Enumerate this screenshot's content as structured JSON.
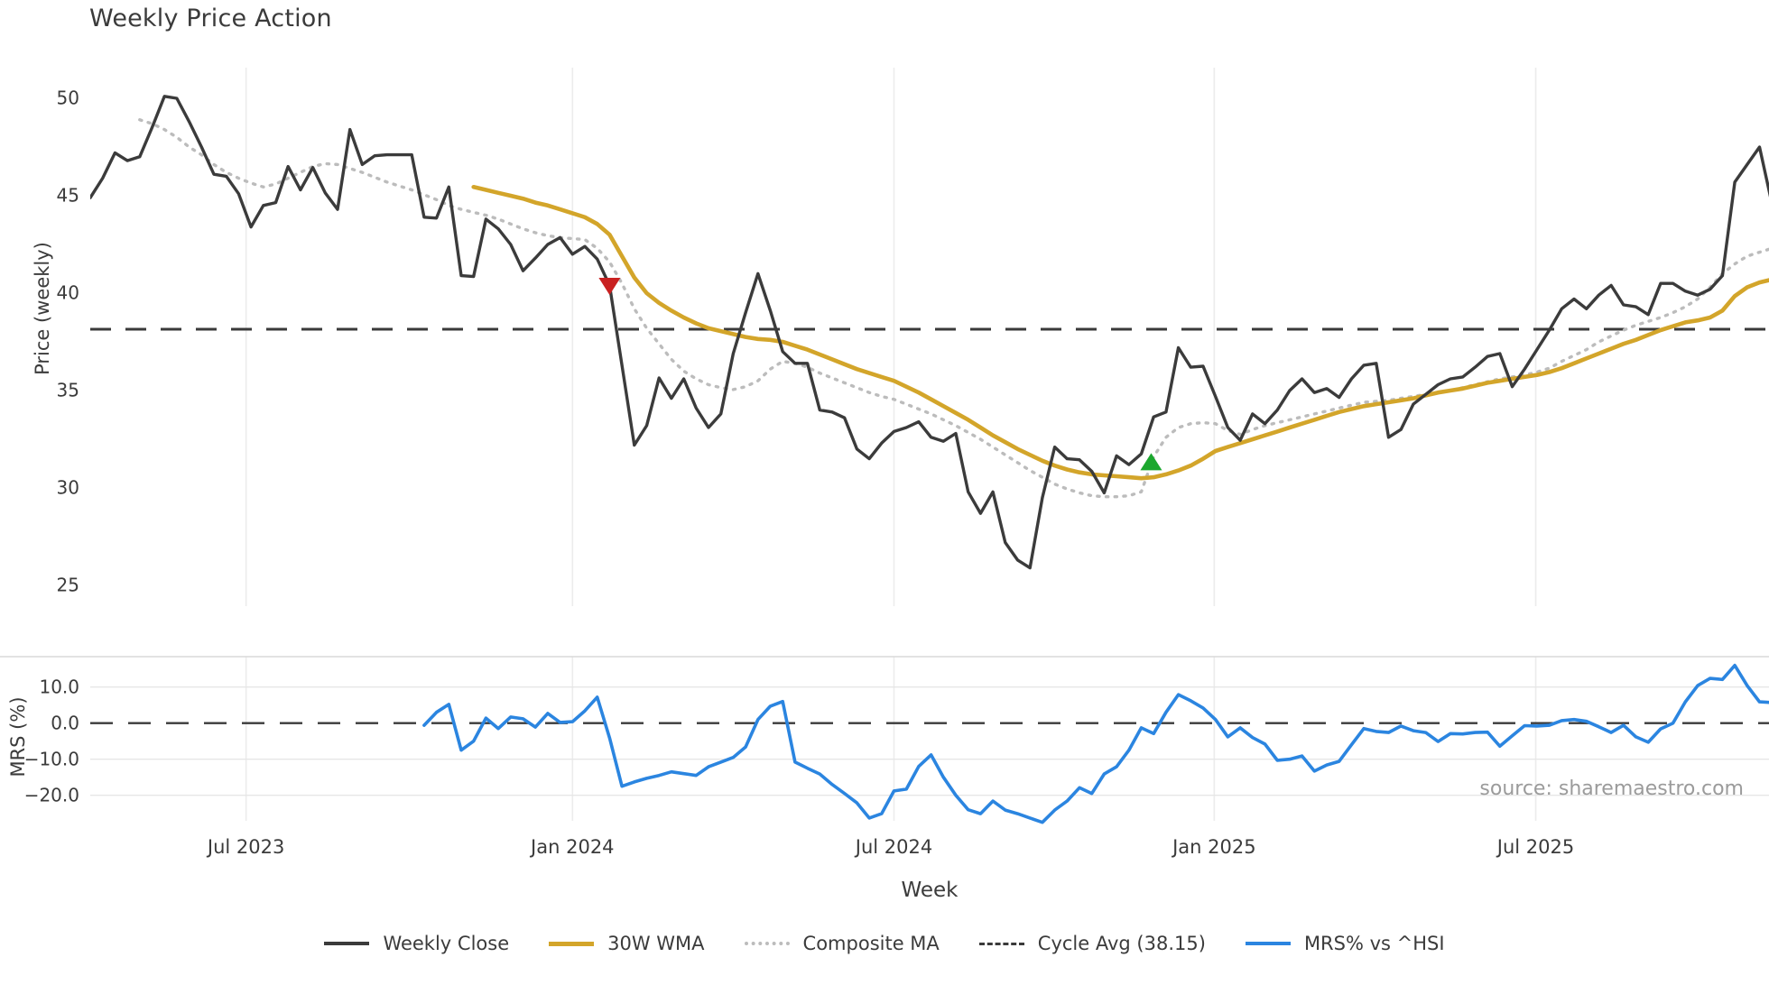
{
  "title": "Weekly Price Action",
  "source": "source: sharemaestro.com",
  "colors": {
    "close": "#3b3b3b",
    "wma": "#d3a52a",
    "composite": "#bcbcbc",
    "cycle_avg": "#3a3a3a",
    "mrs": "#2b85e0",
    "sell_marker": "#c92121",
    "buy_marker": "#1ba72e",
    "gridline": "#ececec",
    "hgrid": "#e6e6e6",
    "panel_border": "#d9d9d9",
    "source_text": "#9b9b9b"
  },
  "legend": [
    {
      "label": "Weekly Close",
      "style": "solid",
      "color": "#3b3b3b",
      "thickness": 4.5
    },
    {
      "label": "30W WMA",
      "style": "solid",
      "color": "#d3a52a",
      "thickness": 5.5
    },
    {
      "label": "Composite MA",
      "style": "dotted",
      "color": "#bcbcbc",
      "thickness": 4
    },
    {
      "label": "Cycle Avg (38.15)",
      "style": "dashed",
      "color": "#3a3a3a",
      "thickness": 3.5
    },
    {
      "label": "MRS% vs ^HSI",
      "style": "solid",
      "color": "#2b85e0",
      "thickness": 4.5
    }
  ],
  "week_axis": {
    "label": "Week",
    "ticks": [
      {
        "label": "Jul 2023",
        "week": 12.6
      },
      {
        "label": "Jan 2024",
        "week": 39.0
      },
      {
        "label": "Jul 2024",
        "week": 65.0
      },
      {
        "label": "Jan 2025",
        "week": 90.9
      },
      {
        "label": "Jul 2025",
        "week": 116.9
      }
    ]
  },
  "price_axis": {
    "label": "Price (weekly)",
    "ticks": [
      {
        "label": "50",
        "value": 50
      },
      {
        "label": "45",
        "value": 45
      },
      {
        "label": "40",
        "value": 40
      },
      {
        "label": "35",
        "value": 35
      },
      {
        "label": "30",
        "value": 30
      },
      {
        "label": "25",
        "value": 25
      }
    ]
  },
  "mrs_axis": {
    "label": "MRS (%)",
    "ticks": [
      {
        "label": "10.0",
        "value": 10
      },
      {
        "label": "0.0",
        "value": 0
      },
      {
        "label": "−10.0",
        "value": -10
      },
      {
        "label": "−20.0",
        "value": -20
      }
    ]
  },
  "chart_data": [
    {
      "type": "line",
      "panel": "price",
      "title": "Weekly Price Action",
      "xlabel": "Week",
      "ylabel": "Price (weekly)",
      "ylim": [
        23.9,
        51.6
      ],
      "x_unit": "weeks from 2023-04-10, spacing 1 week",
      "grid": "vertical-only",
      "cycle_avg": 38.15,
      "series": [
        {
          "name": "Weekly Close",
          "start_week": 0,
          "values": [
            44.9,
            45.9,
            47.2,
            46.8,
            47.0,
            48.5,
            50.1,
            50.0,
            48.8,
            47.5,
            46.1,
            46.0,
            45.1,
            43.4,
            44.5,
            44.65,
            46.5,
            45.3,
            46.45,
            45.15,
            44.3,
            48.4,
            46.6,
            47.05,
            47.1,
            47.1,
            47.1,
            43.9,
            43.85,
            45.45,
            40.9,
            40.85,
            43.8,
            43.3,
            42.5,
            41.15,
            41.8,
            42.5,
            42.85,
            42.0,
            42.4,
            41.75,
            40.4,
            36.3,
            32.2,
            33.2,
            35.65,
            34.6,
            35.6,
            34.1,
            33.1,
            33.8,
            36.9,
            39.0,
            41.0,
            39.1,
            37.0,
            36.4,
            36.4,
            34.0,
            33.9,
            33.6,
            32.0,
            31.5,
            32.3,
            32.9,
            33.1,
            33.4,
            32.6,
            32.4,
            32.8,
            29.8,
            28.7,
            29.8,
            27.2,
            26.3,
            25.9,
            29.5,
            32.1,
            31.5,
            31.45,
            30.85,
            29.75,
            31.65,
            31.2,
            31.75,
            33.65,
            33.9,
            37.2,
            36.2,
            36.25,
            34.7,
            33.1,
            32.45,
            33.8,
            33.3,
            34.0,
            35.0,
            35.6,
            34.9,
            35.1,
            34.65,
            35.6,
            36.3,
            36.4,
            32.6,
            33.0,
            34.3,
            34.8,
            35.3,
            35.6,
            35.7,
            36.2,
            36.75,
            36.9,
            35.2,
            36.1,
            37.1,
            38.1,
            39.2,
            39.7,
            39.2,
            39.9,
            40.4,
            39.4,
            39.3,
            38.9,
            40.5,
            40.5,
            40.1,
            39.9,
            40.2,
            40.9,
            45.7,
            46.6,
            47.5,
            44.6
          ]
        },
        {
          "name": "30W WMA",
          "start_week": 31,
          "values": [
            45.45,
            45.3,
            45.15,
            45.0,
            44.85,
            44.65,
            44.5,
            44.3,
            44.1,
            43.9,
            43.55,
            43.0,
            41.9,
            40.8,
            40.0,
            39.5,
            39.1,
            38.75,
            38.45,
            38.2,
            38.05,
            37.9,
            37.75,
            37.65,
            37.6,
            37.5,
            37.3,
            37.1,
            36.85,
            36.6,
            36.35,
            36.1,
            35.9,
            35.7,
            35.5,
            35.2,
            34.9,
            34.55,
            34.2,
            33.85,
            33.5,
            33.1,
            32.7,
            32.35,
            32.0,
            31.7,
            31.4,
            31.15,
            30.95,
            30.8,
            30.7,
            30.65,
            30.6,
            30.55,
            30.5,
            30.55,
            30.7,
            30.9,
            31.15,
            31.5,
            31.9,
            32.1,
            32.3,
            32.5,
            32.7,
            32.9,
            33.1,
            33.3,
            33.5,
            33.7,
            33.9,
            34.05,
            34.2,
            34.3,
            34.4,
            34.5,
            34.6,
            34.75,
            34.9,
            35.0,
            35.1,
            35.25,
            35.4,
            35.5,
            35.6,
            35.7,
            35.8,
            35.95,
            36.15,
            36.4,
            36.65,
            36.9,
            37.15,
            37.4,
            37.6,
            37.85,
            38.1,
            38.3,
            38.5,
            38.6,
            38.75,
            39.1,
            39.85,
            40.3,
            40.55,
            40.7
          ]
        },
        {
          "name": "Composite MA",
          "start_week": 4,
          "values": [
            48.9,
            48.7,
            48.4,
            48.0,
            47.5,
            47.1,
            46.6,
            46.2,
            45.9,
            45.65,
            45.45,
            45.6,
            45.9,
            46.2,
            46.5,
            46.65,
            46.6,
            46.4,
            46.2,
            45.95,
            45.7,
            45.5,
            45.3,
            45.05,
            44.8,
            44.5,
            44.3,
            44.15,
            44.0,
            43.8,
            43.55,
            43.3,
            43.1,
            42.95,
            42.85,
            42.8,
            42.75,
            42.3,
            41.6,
            40.5,
            39.2,
            38.2,
            37.4,
            36.6,
            36.0,
            35.6,
            35.3,
            35.15,
            35.05,
            35.2,
            35.5,
            36.1,
            36.5,
            36.4,
            36.2,
            35.9,
            35.65,
            35.4,
            35.15,
            34.9,
            34.7,
            34.55,
            34.3,
            34.05,
            33.8,
            33.5,
            33.2,
            32.85,
            32.5,
            32.1,
            31.7,
            31.3,
            30.9,
            30.55,
            30.2,
            29.95,
            29.75,
            29.6,
            29.55,
            29.55,
            29.6,
            29.8,
            31.6,
            32.6,
            33.1,
            33.3,
            33.35,
            33.3,
            32.95,
            32.75,
            33.0,
            33.2,
            33.35,
            33.5,
            33.65,
            33.8,
            33.95,
            34.1,
            34.25,
            34.4,
            34.45,
            34.5,
            34.6,
            34.7,
            34.8,
            34.9,
            35.0,
            35.15,
            35.3,
            35.45,
            35.6,
            35.7,
            35.8,
            35.95,
            36.15,
            36.5,
            36.8,
            37.1,
            37.5,
            37.8,
            38.1,
            38.35,
            38.55,
            38.75,
            39.0,
            39.3,
            39.7,
            40.3,
            41.0,
            41.5,
            41.9,
            42.1,
            42.3
          ]
        }
      ],
      "markers": [
        {
          "name": "sell-signal",
          "shape": "triangle-down",
          "week": 42,
          "value": 40.35,
          "color": "#c92121"
        },
        {
          "name": "buy-signal",
          "shape": "triangle-up",
          "week": 85.8,
          "value": 31.35,
          "color": "#1ba72e"
        }
      ]
    },
    {
      "type": "line",
      "panel": "mrs",
      "ylabel": "MRS (%)",
      "ylim": [
        -28.5,
        18.7
      ],
      "zero_line": 0,
      "grid": "horizontal-and-vertical",
      "series": [
        {
          "name": "MRS% vs ^HSI",
          "start_week": 27,
          "values": [
            -0.6,
            3.0,
            5.2,
            -7.5,
            -5.0,
            1.4,
            -1.5,
            1.7,
            1.2,
            -1.1,
            2.7,
            0.2,
            0.4,
            3.4,
            7.2,
            -4.1,
            -17.5,
            -16.3,
            -15.3,
            -14.5,
            -13.5,
            -14.0,
            -14.5,
            -12.1,
            -10.8,
            -9.5,
            -6.6,
            1.0,
            4.7,
            6.0,
            -10.8,
            -12.5,
            -14.1,
            -17.0,
            -19.5,
            -22.1,
            -26.3,
            -25.1,
            -18.8,
            -18.3,
            -12.0,
            -8.8,
            -15.0,
            -20.0,
            -24.0,
            -25.1,
            -21.6,
            -24.1,
            -25.1,
            -26.3,
            -27.5,
            -24.1,
            -21.6,
            -17.9,
            -19.5,
            -14.1,
            -12.1,
            -7.5,
            -1.3,
            -2.9,
            3.0,
            7.9,
            6.2,
            4.2,
            1.0,
            -3.8,
            -1.3,
            -4.0,
            -5.8,
            -10.3,
            -10.0,
            -9.1,
            -13.3,
            -11.6,
            -10.6,
            -6.0,
            -1.5,
            -2.3,
            -2.6,
            -0.8,
            -2.1,
            -2.6,
            -5.1,
            -2.9,
            -3.0,
            -2.6,
            -2.5,
            -6.4,
            -3.5,
            -0.7,
            -0.8,
            -0.6,
            0.7,
            1.0,
            0.5,
            -1.0,
            -2.6,
            -0.6,
            -3.8,
            -5.3,
            -1.6,
            0.0,
            5.9,
            10.4,
            12.4,
            12.1,
            16.0,
            10.4,
            5.9,
            5.7
          ]
        }
      ]
    }
  ]
}
